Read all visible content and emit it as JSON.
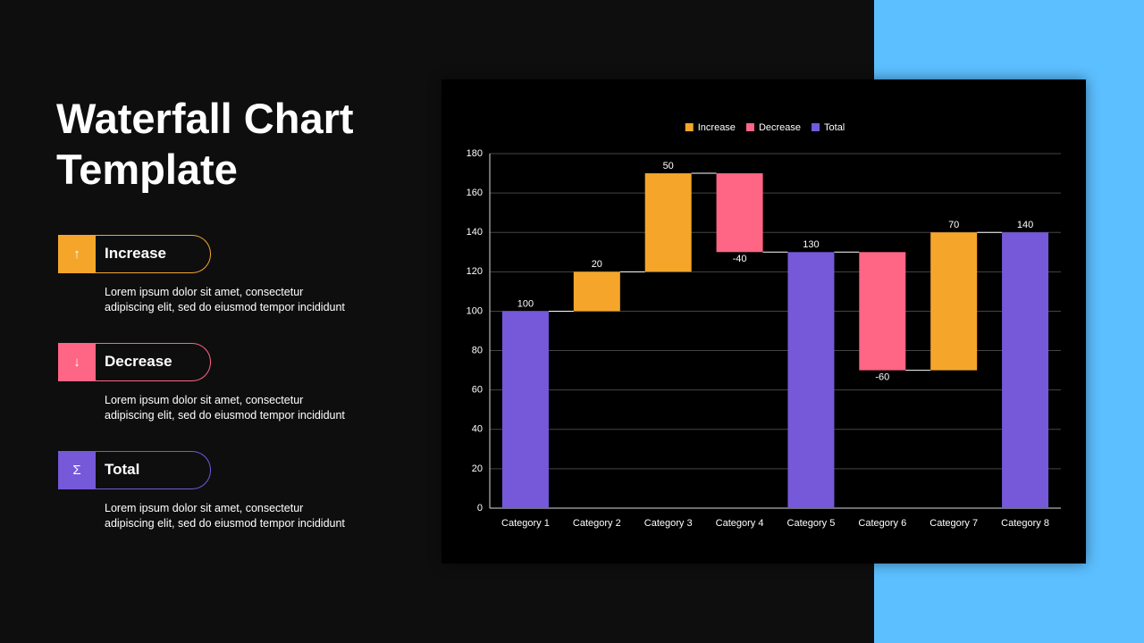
{
  "title": "Waterfall Chart Template",
  "items": [
    {
      "icon": "↑",
      "label": "Increase",
      "lines": [
        "Lorem ipsum dolor sit amet, consectetur",
        "adipiscing elit, sed do eiusmod tempor incididunt"
      ]
    },
    {
      "icon": "↓",
      "label": "Decrease",
      "lines": [
        "Lorem ipsum dolor sit amet, consectetur",
        "adipiscing elit, sed do eiusmod tempor incididunt"
      ]
    },
    {
      "icon": "Σ",
      "label": "Total",
      "lines": [
        "Lorem ipsum dolor sit amet, consectetur",
        "adipiscing elit, sed do eiusmod tempor incididunt"
      ]
    }
  ],
  "chart_data": {
    "type": "waterfall",
    "categories": [
      "Category 1",
      "Category 2",
      "Category 3",
      "Category 4",
      "Category 5",
      "Category 6",
      "Category 7",
      "Category 8"
    ],
    "series": [
      {
        "name": "Increase",
        "color": "#f5a62a",
        "values": [
          null,
          20,
          50,
          null,
          null,
          null,
          70,
          null
        ]
      },
      {
        "name": "Decrease",
        "color": "#ff6584",
        "values": [
          null,
          null,
          null,
          -40,
          null,
          -60,
          null,
          null
        ]
      },
      {
        "name": "Total",
        "color": "#7559d9",
        "role": "total",
        "values": [
          100,
          null,
          null,
          null,
          130,
          null,
          null,
          140
        ]
      }
    ],
    "ylim": [
      0,
      180
    ],
    "yticks": [
      0,
      20,
      40,
      60,
      80,
      100,
      120,
      140,
      160,
      180
    ],
    "grid": true,
    "legend": "top"
  }
}
